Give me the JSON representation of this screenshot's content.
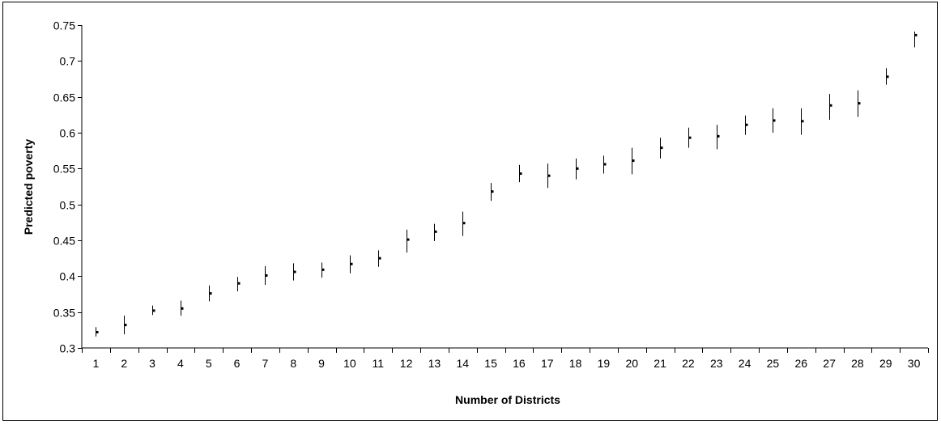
{
  "chart_data": {
    "type": "scatter",
    "title": "",
    "xlabel": "Number of Districts",
    "ylabel": "Predicted poverty",
    "ylim": [
      0.3,
      0.75
    ],
    "y_ticks": [
      "0.3",
      "0.35",
      "0.4",
      "0.45",
      "0.5",
      "0.55",
      "0.6",
      "0.65",
      "0.7",
      "0.75"
    ],
    "categories": [
      "1",
      "2",
      "3",
      "4",
      "5",
      "6",
      "7",
      "8",
      "9",
      "10",
      "11",
      "12",
      "13",
      "14",
      "15",
      "16",
      "17",
      "18",
      "19",
      "20",
      "21",
      "22",
      "23",
      "24",
      "25",
      "26",
      "27",
      "28",
      "29",
      "30"
    ],
    "series": [
      {
        "values": [
          0.322,
          0.332,
          0.352,
          0.355,
          0.376,
          0.39,
          0.401,
          0.406,
          0.409,
          0.417,
          0.425,
          0.451,
          0.462,
          0.474,
          0.518,
          0.543,
          0.54,
          0.55,
          0.556,
          0.561,
          0.579,
          0.593,
          0.595,
          0.611,
          0.617,
          0.616,
          0.638,
          0.641,
          0.678,
          0.736
        ],
        "lower": [
          0.316,
          0.319,
          0.346,
          0.345,
          0.365,
          0.379,
          0.388,
          0.394,
          0.398,
          0.404,
          0.413,
          0.433,
          0.449,
          0.456,
          0.505,
          0.531,
          0.523,
          0.535,
          0.543,
          0.542,
          0.564,
          0.579,
          0.577,
          0.597,
          0.6,
          0.597,
          0.618,
          0.622,
          0.667,
          0.719
        ],
        "upper": [
          0.329,
          0.345,
          0.359,
          0.366,
          0.387,
          0.399,
          0.414,
          0.418,
          0.419,
          0.429,
          0.436,
          0.465,
          0.473,
          0.49,
          0.53,
          0.555,
          0.557,
          0.564,
          0.568,
          0.579,
          0.593,
          0.607,
          0.611,
          0.624,
          0.634,
          0.634,
          0.654,
          0.659,
          0.69,
          0.741
        ]
      }
    ],
    "grid": false,
    "legend": "none",
    "mark_color": "#000000"
  }
}
